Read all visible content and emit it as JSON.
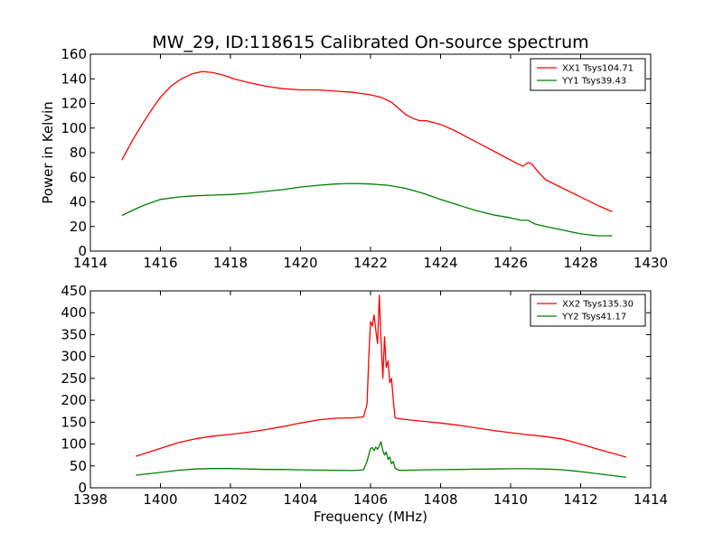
{
  "title": "MW_29, ID:118615 Calibrated On-source spectrum",
  "colors": {
    "red": "#ff0000",
    "green": "#008000",
    "axes": "#000000",
    "background": "#ffffff"
  },
  "chart_data": [
    {
      "type": "line",
      "title": "MW_29, ID:118615 Calibrated On-source spectrum",
      "xlabel": "",
      "ylabel": "Power in Kelvin",
      "xlim": [
        1414,
        1430
      ],
      "ylim": [
        0,
        160
      ],
      "xticks": [
        1414,
        1416,
        1418,
        1420,
        1422,
        1424,
        1426,
        1428,
        1430
      ],
      "yticks": [
        0,
        20,
        40,
        60,
        80,
        100,
        120,
        140,
        160
      ],
      "grid": false,
      "legend": "top-right",
      "series": [
        {
          "name": "XX1 Tsys104.71",
          "color": "#ff0000",
          "x": [
            1414.9,
            1415.2,
            1415.5,
            1415.8,
            1416.0,
            1416.3,
            1416.6,
            1416.9,
            1417.2,
            1417.5,
            1417.8,
            1418.1,
            1418.5,
            1419.0,
            1419.5,
            1420.0,
            1420.5,
            1421.0,
            1421.5,
            1422.0,
            1422.3,
            1422.6,
            1422.8,
            1423.0,
            1423.2,
            1423.4,
            1423.6,
            1424.0,
            1424.4,
            1424.8,
            1425.2,
            1425.6,
            1426.0,
            1426.2,
            1426.35,
            1426.5,
            1426.6,
            1426.8,
            1427.0,
            1427.5,
            1428.0,
            1428.5,
            1428.9
          ],
          "y": [
            74,
            90,
            104,
            117,
            125,
            134,
            140,
            144,
            146,
            145,
            143,
            140,
            137,
            134,
            132,
            131,
            131,
            130,
            129,
            127,
            125,
            121,
            116,
            111,
            108,
            106,
            106,
            103,
            98,
            92,
            86,
            80,
            74,
            71,
            69,
            72,
            71,
            64,
            58,
            51,
            44,
            37,
            32
          ]
        },
        {
          "name": "YY1 Tsys39.43",
          "color": "#008000",
          "x": [
            1414.9,
            1415.2,
            1415.5,
            1415.8,
            1416.0,
            1416.5,
            1417.0,
            1417.5,
            1418.0,
            1418.5,
            1419.0,
            1419.5,
            1420.0,
            1420.5,
            1421.0,
            1421.5,
            1422.0,
            1422.5,
            1423.0,
            1423.5,
            1424.0,
            1424.5,
            1425.0,
            1425.5,
            1426.0,
            1426.3,
            1426.5,
            1426.7,
            1427.0,
            1427.5,
            1428.0,
            1428.5,
            1428.9
          ],
          "y": [
            29,
            33,
            37,
            40,
            42,
            44,
            45,
            45.5,
            46,
            47,
            48.5,
            50,
            52,
            53.5,
            54.5,
            55,
            54.5,
            53.5,
            51,
            47,
            42,
            37.5,
            33,
            29.5,
            27,
            25,
            25,
            22,
            20,
            17,
            14,
            12.5,
            12.5
          ]
        }
      ]
    },
    {
      "type": "line",
      "title": "",
      "xlabel": "Frequency (MHz)",
      "ylabel": "",
      "xlim": [
        1398,
        1414
      ],
      "ylim": [
        0,
        450
      ],
      "xticks": [
        1398,
        1400,
        1402,
        1404,
        1406,
        1408,
        1410,
        1412,
        1414
      ],
      "yticks": [
        0,
        50,
        100,
        150,
        200,
        250,
        300,
        350,
        400,
        450
      ],
      "grid": false,
      "legend": "top-right",
      "series": [
        {
          "name": "XX2 Tsys135.30",
          "color": "#ff0000",
          "x": [
            1399.3,
            1400.0,
            1400.5,
            1401.0,
            1401.5,
            1402.0,
            1402.5,
            1403.0,
            1403.5,
            1404.0,
            1404.5,
            1405.0,
            1405.5,
            1405.8,
            1405.9,
            1405.95,
            1406.0,
            1406.05,
            1406.1,
            1406.15,
            1406.2,
            1406.25,
            1406.3,
            1406.35,
            1406.4,
            1406.45,
            1406.5,
            1406.55,
            1406.6,
            1406.65,
            1406.7,
            1406.8,
            1407.0,
            1407.5,
            1408.0,
            1408.5,
            1409.0,
            1409.5,
            1410.0,
            1410.5,
            1411.0,
            1411.5,
            1412.0,
            1412.5,
            1413.0,
            1413.3
          ],
          "y": [
            72,
            90,
            103,
            112,
            118,
            122,
            127,
            133,
            140,
            148,
            155,
            159,
            160,
            162,
            190,
            300,
            380,
            370,
            395,
            360,
            330,
            440,
            340,
            250,
            345,
            275,
            290,
            240,
            250,
            200,
            160,
            158,
            156,
            152,
            148,
            143,
            137,
            131,
            126,
            121,
            117,
            111,
            100,
            88,
            77,
            70
          ]
        },
        {
          "name": "YY2 Tsys41.17",
          "color": "#008000",
          "x": [
            1399.3,
            1400.0,
            1400.5,
            1401.0,
            1401.5,
            1402.0,
            1402.5,
            1403.0,
            1403.5,
            1404.0,
            1404.5,
            1405.0,
            1405.5,
            1405.8,
            1405.9,
            1406.0,
            1406.05,
            1406.1,
            1406.15,
            1406.2,
            1406.25,
            1406.3,
            1406.35,
            1406.4,
            1406.45,
            1406.5,
            1406.55,
            1406.6,
            1406.65,
            1406.7,
            1406.8,
            1407.0,
            1407.5,
            1408.0,
            1408.5,
            1409.0,
            1409.5,
            1410.0,
            1410.5,
            1411.0,
            1411.5,
            1412.0,
            1412.5,
            1413.0,
            1413.3
          ],
          "y": [
            29,
            35,
            40,
            43,
            44,
            44,
            43,
            42,
            42,
            41,
            40.5,
            40,
            39.5,
            41,
            60,
            90,
            92,
            85,
            93,
            88,
            96,
            105,
            85,
            75,
            82,
            65,
            70,
            55,
            60,
            45,
            40,
            40,
            41,
            41.5,
            42,
            42.5,
            43,
            43.5,
            43.5,
            43,
            41,
            37,
            32,
            27,
            24
          ]
        }
      ]
    }
  ]
}
